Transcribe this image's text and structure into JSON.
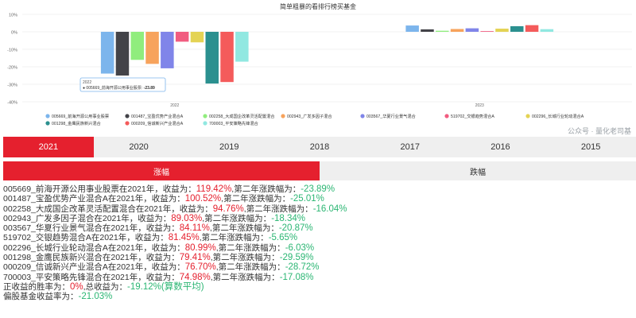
{
  "chart_data": {
    "type": "bar",
    "title": "简单粗暴的看排行榜买基金",
    "categories": [
      "2022",
      "2023"
    ],
    "ylim": [
      -40,
      10
    ],
    "yticks": [
      "10%",
      "0%",
      "-10%",
      "-20%",
      "-30%",
      "-40%"
    ],
    "series": [
      {
        "name": "005669_前海开源公用事业股票",
        "color": "#7cb5ec",
        "values": [
          -23.89,
          3.6
        ]
      },
      {
        "name": "001487_宝盈优势产业混合A",
        "color": "#434348",
        "values": [
          -25.01,
          1.4
        ]
      },
      {
        "name": "002258_大成国企改革灵活配置混合",
        "color": "#90ed7d",
        "values": [
          -16.04,
          0.6
        ]
      },
      {
        "name": "002943_广发多因子混合",
        "color": "#f7a35c",
        "values": [
          -18.34,
          1.6
        ]
      },
      {
        "name": "003567_华夏行业景气混合",
        "color": "#8085e9",
        "values": [
          -20.87,
          2.0
        ]
      },
      {
        "name": "519702_交银趋势混合A",
        "color": "#f15c80",
        "values": [
          -5.65,
          0.4
        ]
      },
      {
        "name": "002296_长城行业轮动混合A",
        "color": "#e4d354",
        "values": [
          -6.03,
          1.8
        ]
      },
      {
        "name": "001298_金鹰民族新兴混合",
        "color": "#2b908f",
        "values": [
          -29.59,
          3.2
        ]
      },
      {
        "name": "000209_信诚新兴产业混合A",
        "color": "#f45b5b",
        "values": [
          -28.72,
          3.8
        ]
      },
      {
        "name": "700003_平安策略先锋混合",
        "color": "#91e8e1",
        "values": [
          -17.08,
          1.5
        ]
      }
    ],
    "tooltip": {
      "category": "2022",
      "series": "005669_前海开源公用事业股票",
      "value": "-23.89"
    },
    "legend_position": "bottom",
    "grid": true
  },
  "watermark": "公众号 · 量化老司基",
  "year_tabs": [
    "2021",
    "2020",
    "2019",
    "2018",
    "2017",
    "2016",
    "2015"
  ],
  "mode_tabs": [
    "涨幅",
    "跌幅"
  ],
  "results": [
    {
      "prefix": "005669_前海开源公用事业股票在2021年，收益为：",
      "gain": "119.42%",
      "mid": ",第二年涨跌幅为：",
      "next": "-23.89%"
    },
    {
      "prefix": "001487_宝盈优势产业混合A在2021年，收益为：",
      "gain": "100.52%",
      "mid": ",第二年涨跌幅为：",
      "next": "-25.01%"
    },
    {
      "prefix": "002258_大成国企改革灵活配置混合在2021年，收益为：",
      "gain": "94.76%",
      "mid": ",第二年涨跌幅为：",
      "next": "-16.04%"
    },
    {
      "prefix": "002943_广发多因子混合在2021年，收益为：",
      "gain": "89.03%",
      "mid": ",第二年涨跌幅为：",
      "next": "-18.34%"
    },
    {
      "prefix": "003567_华夏行业景气混合在2021年，收益为：",
      "gain": "84.11%",
      "mid": ",第二年涨跌幅为：",
      "next": "-20.87%"
    },
    {
      "prefix": "519702_交银趋势混合A在2021年，收益为：",
      "gain": "81.45%",
      "mid": ",第二年涨跌幅为：",
      "next": "-5.65%"
    },
    {
      "prefix": "002296_长城行业轮动混合A在2021年，收益为：",
      "gain": "80.99%",
      "mid": ",第二年涨跌幅为：",
      "next": "-6.03%"
    },
    {
      "prefix": "001298_金鹰民族新兴混合在2021年，收益为：",
      "gain": "79.41%",
      "mid": ",第二年涨跌幅为：",
      "next": "-29.59%"
    },
    {
      "prefix": "000209_信诚新兴产业混合A在2021年，收益为：",
      "gain": "76.70%",
      "mid": ",第二年涨跌幅为：",
      "next": "-28.72%"
    },
    {
      "prefix": "700003_平安策略先锋混合在2021年，收益为：",
      "gain": "74.98%",
      "mid": ",第二年涨跌幅为：",
      "next": "-17.08%"
    }
  ],
  "summary": {
    "win_label": "正收益的胜率为：",
    "win_value": "0%",
    "total_label": ",总收益为：",
    "total_value": "-19.12%(算数平均)",
    "bias_label": "偏股基金收益率为：",
    "bias_value": "-21.03%"
  },
  "colors": {
    "accent": "#e5202e",
    "gain": "#e5202e",
    "loss": "#2bb673"
  }
}
